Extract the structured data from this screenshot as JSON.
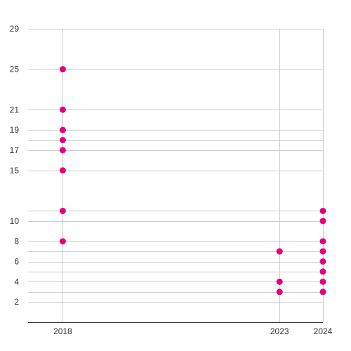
{
  "chart_data": {
    "type": "scatter",
    "title": "",
    "xlabel": "",
    "ylabel": "",
    "x_ticks": [
      2018,
      2023,
      2024
    ],
    "y_ticks": [
      2,
      4,
      6,
      8,
      10,
      15,
      17,
      19,
      21,
      25,
      29
    ],
    "xlim": [
      2017.2,
      2024
    ],
    "ylim": [
      0,
      29
    ],
    "grid": true,
    "legend": "none",
    "series": [
      {
        "color": "#e6007e",
        "points": [
          {
            "x": 2018,
            "y": 25
          },
          {
            "x": 2018,
            "y": 21
          },
          {
            "x": 2018,
            "y": 19
          },
          {
            "x": 2018,
            "y": 18
          },
          {
            "x": 2018,
            "y": 17
          },
          {
            "x": 2018,
            "y": 15
          },
          {
            "x": 2018,
            "y": 11
          },
          {
            "x": 2018,
            "y": 8
          },
          {
            "x": 2023,
            "y": 7
          },
          {
            "x": 2023,
            "y": 4
          },
          {
            "x": 2023,
            "y": 3
          },
          {
            "x": 2024,
            "y": 11
          },
          {
            "x": 2024,
            "y": 10
          },
          {
            "x": 2024,
            "y": 8
          },
          {
            "x": 2024,
            "y": 7
          },
          {
            "x": 2024,
            "y": 6
          },
          {
            "x": 2024,
            "y": 5
          },
          {
            "x": 2024,
            "y": 4
          },
          {
            "x": 2024,
            "y": 3
          }
        ]
      }
    ]
  },
  "colors": {
    "grid": "#cccccc",
    "axis": "#333333",
    "point": "#e6007e"
  }
}
